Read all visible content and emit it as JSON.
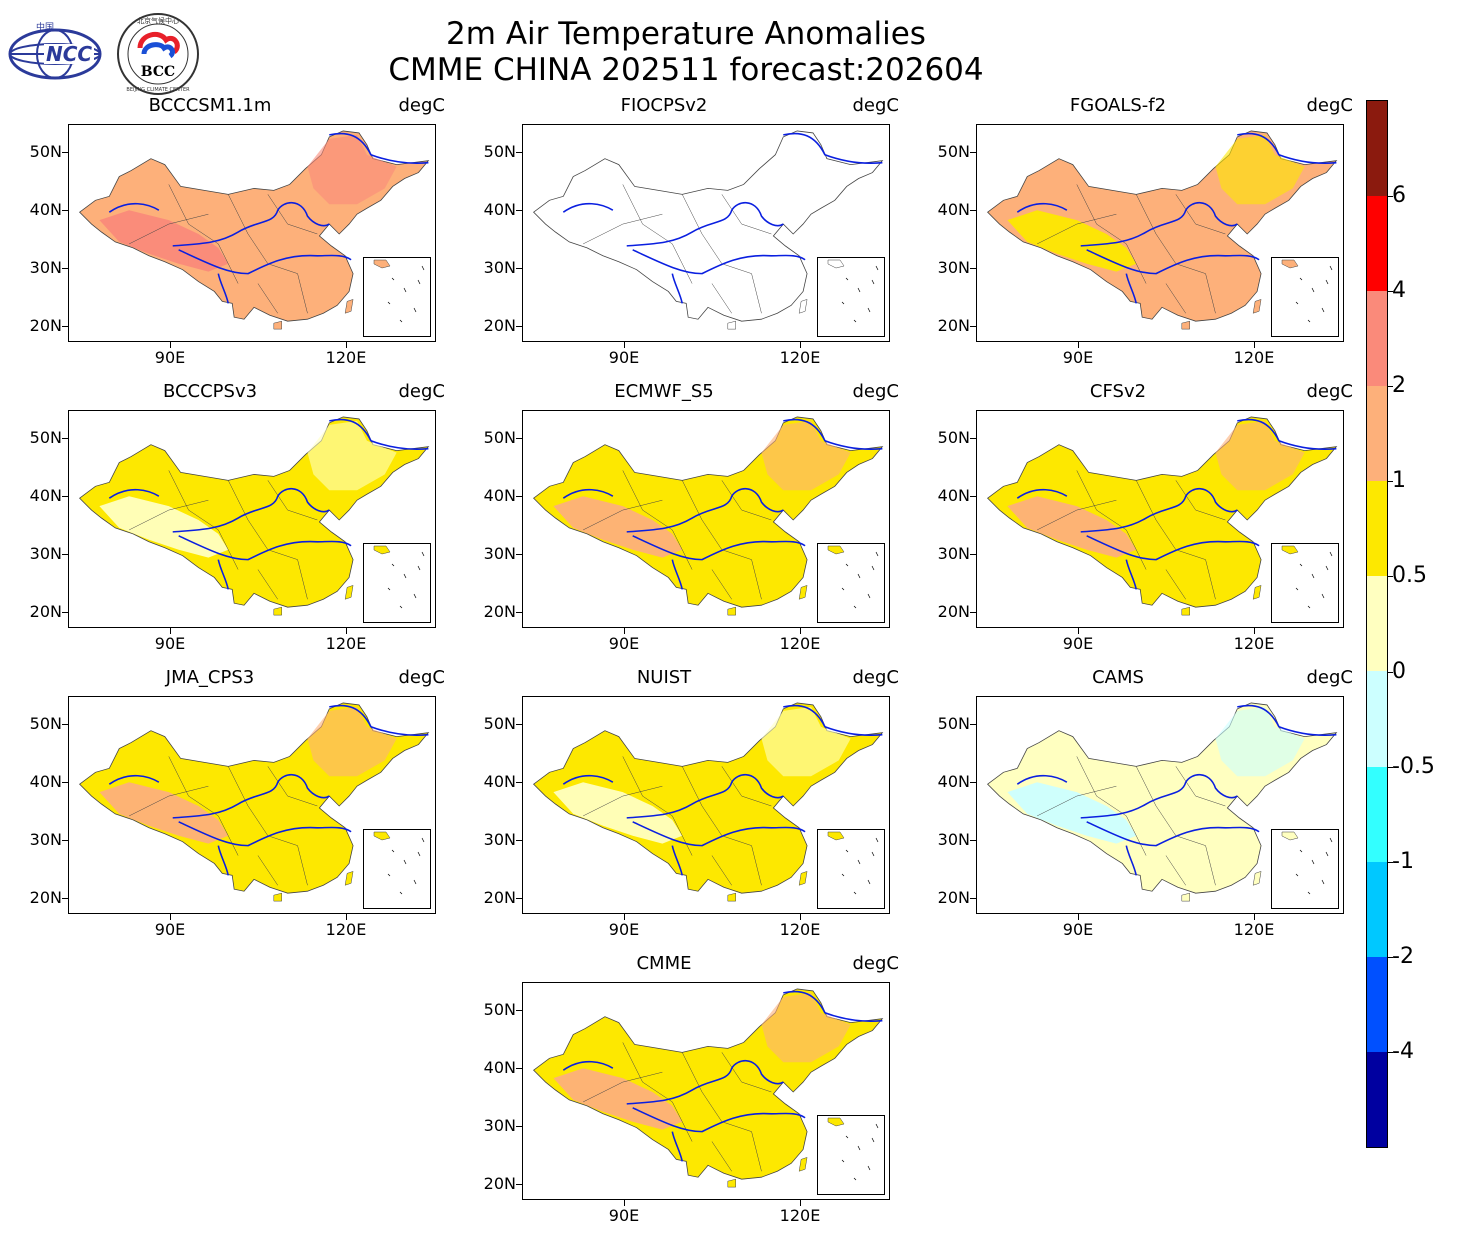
{
  "title": {
    "line1": "2m Air Temperature Anomalies",
    "line2": "CMME CHINA 202511 forecast:202604"
  },
  "logos": {
    "ncc": {
      "name": "NCC",
      "top_text": "中国"
    },
    "bcc": {
      "name": "BCC",
      "top_text": "北京气候中心",
      "bottom_text": "BEIJING CLIMATE CENTER"
    }
  },
  "unit": "degC",
  "axes": {
    "lat_ticks": [
      "50N",
      "40N",
      "30N",
      "20N"
    ],
    "lon_ticks": [
      "90E",
      "120E"
    ]
  },
  "panels": [
    {
      "model": "BCCCSM1.1m",
      "dominant_category": "1 to 2",
      "secondary_category": "2 to 4"
    },
    {
      "model": "FIOCPSv2",
      "dominant_category": "no data",
      "secondary_category": "no data"
    },
    {
      "model": "FGOALS-f2",
      "dominant_category": "1 to 2",
      "secondary_category": "0.5 to 1"
    },
    {
      "model": "BCCCPSv3",
      "dominant_category": "0.5 to 1",
      "secondary_category": "0 to 0.5"
    },
    {
      "model": "ECMWF_S5",
      "dominant_category": "0.5 to 1",
      "secondary_category": "1 to 2"
    },
    {
      "model": "CFSv2",
      "dominant_category": "0.5 to 1",
      "secondary_category": "1 to 2"
    },
    {
      "model": "JMA_CPS3",
      "dominant_category": "0.5 to 1",
      "secondary_category": "1 to 2"
    },
    {
      "model": "NUIST",
      "dominant_category": "0.5 to 1",
      "secondary_category": "0 to 0.5"
    },
    {
      "model": "CAMS",
      "dominant_category": "0 to 0.5",
      "secondary_category": "-0.5 to 0"
    },
    {
      "model": "CMME",
      "dominant_category": "0.5 to 1",
      "secondary_category": "1 to 2"
    }
  ],
  "colorbar": {
    "labels": [
      "6",
      "4",
      "2",
      "1",
      "0.5",
      "0",
      "-0.5",
      "-1",
      "-2",
      "-4"
    ],
    "colors": [
      "#8b1a0e",
      "#ff0000",
      "#fa8a7a",
      "#fdb07a",
      "#fde800",
      "#ffffc0",
      "#ccffff",
      "#33ffff",
      "#00c8ff",
      "#0050ff",
      "#0000a0"
    ]
  }
}
